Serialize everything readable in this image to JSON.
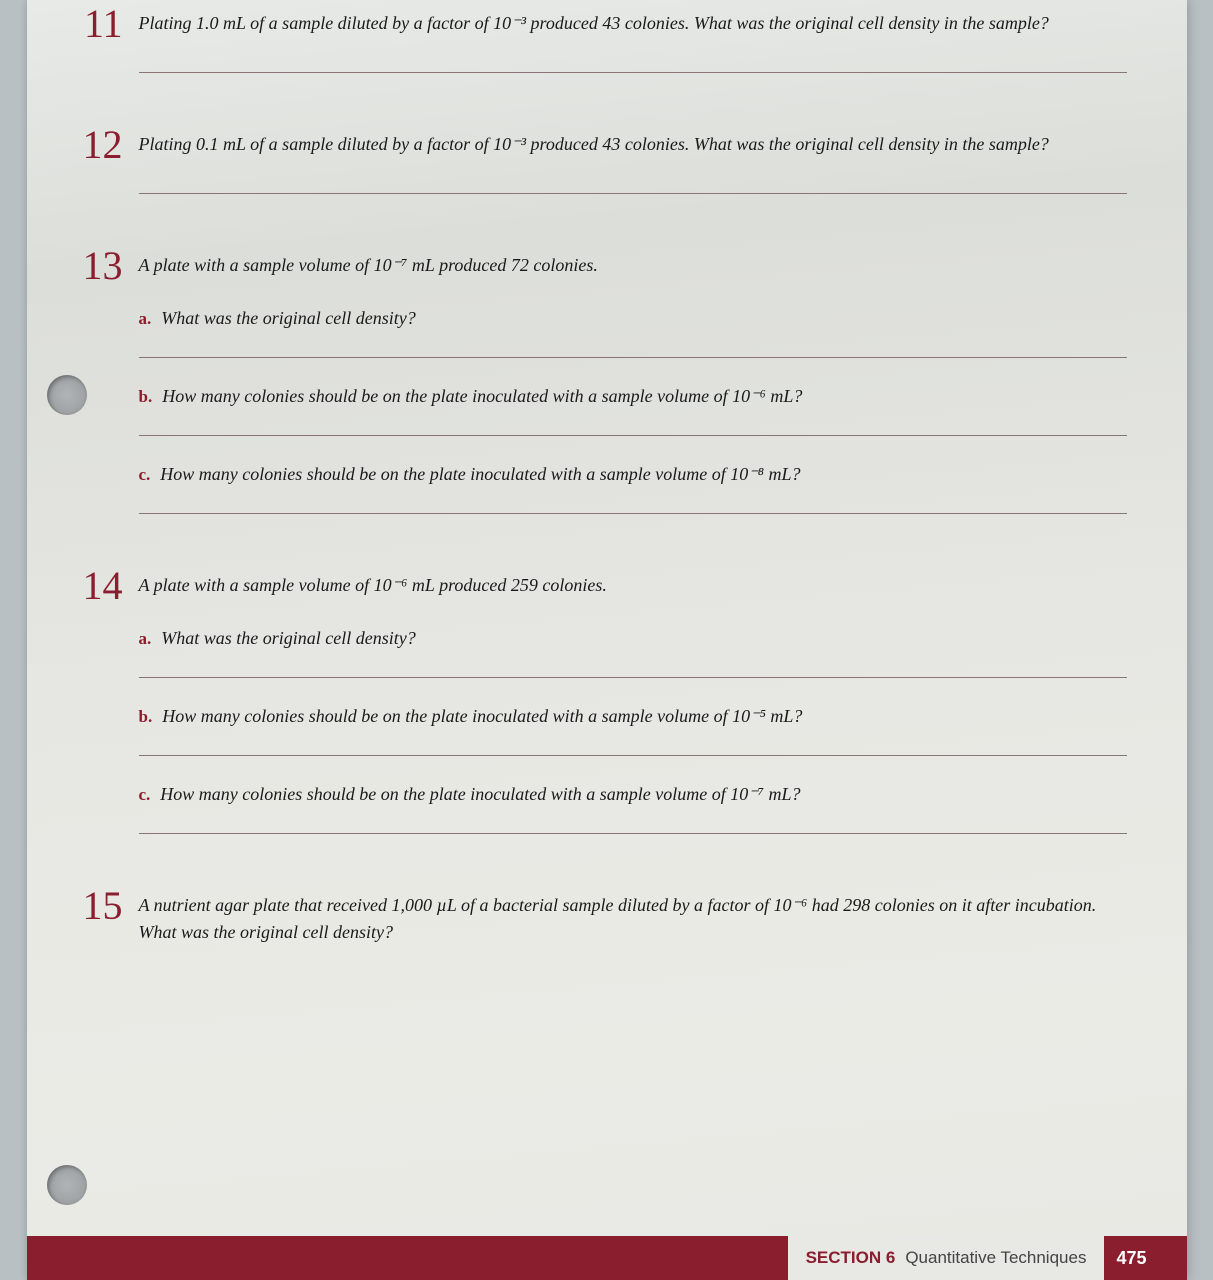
{
  "colors": {
    "accent": "#8a1e2e",
    "text": "#1a1a1a",
    "line": "#8a7575",
    "page_bg": "#e6e6e2",
    "outer_bg": "#b8c0c4"
  },
  "typography": {
    "body_fontsize": 18,
    "qnum_fontsize": 40,
    "body_style": "italic",
    "family": "Georgia"
  },
  "questions": [
    {
      "num": "11",
      "text": "Plating 1.0 mL of a sample diluted by a factor of 10⁻³ produced 43 colonies. What was the original cell density in the sample?"
    },
    {
      "num": "12",
      "text": "Plating 0.1 mL of a sample diluted by a factor of 10⁻³ produced 43 colonies. What was the original cell density in the sample?"
    },
    {
      "num": "13",
      "text": "A plate with a sample volume of 10⁻⁷ mL produced 72 colonies.",
      "parts": [
        {
          "letter": "a.",
          "text": "What was the original cell density?"
        },
        {
          "letter": "b.",
          "text": "How many colonies should be on the plate inoculated with a sample volume of 10⁻⁶ mL?"
        },
        {
          "letter": "c.",
          "text": "How many colonies should be on the plate inoculated with a sample volume of 10⁻⁸ mL?"
        }
      ]
    },
    {
      "num": "14",
      "text": "A plate with a sample volume of 10⁻⁶ mL produced 259 colonies.",
      "parts": [
        {
          "letter": "a.",
          "text": "What was the original cell density?"
        },
        {
          "letter": "b.",
          "text": "How many colonies should be on the plate inoculated with a sample volume of 10⁻⁵ mL?"
        },
        {
          "letter": "c.",
          "text": "How many colonies should be on the plate inoculated with a sample volume of 10⁻⁷ mL?"
        }
      ]
    },
    {
      "num": "15",
      "text": "A nutrient agar plate that received 1,000 µL of a bacterial sample diluted by a factor of 10⁻⁶ had 298 colonies on it after incubation. What was the original cell density?"
    }
  ],
  "footer": {
    "section_label": "SECTION 6",
    "section_title": "Quantitative Techniques",
    "page": "475"
  }
}
